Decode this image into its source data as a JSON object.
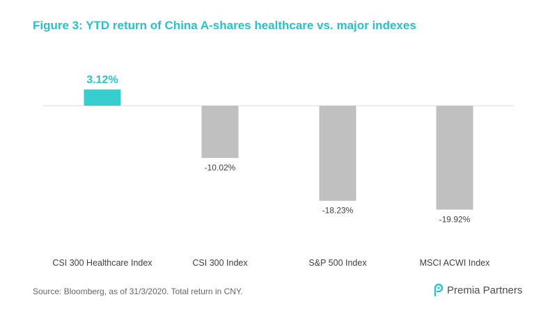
{
  "title": "Figure 3: YTD return of China A-shares healthcare vs. major indexes",
  "footer": {
    "source": "Source: Bloomberg,  as of 31/3/2020.  Total return in CNY.",
    "logo_text": "Premia Partners"
  },
  "colors": {
    "highlight": "#36cfcf",
    "bar": "#c0c0c0",
    "title": "#2cbfc5",
    "axis": "#d9d9d9",
    "label": "#404040"
  },
  "chart_data": {
    "type": "bar",
    "title": "Figure 3: YTD return of China A-shares healthcare vs. major indexes",
    "xlabel": "",
    "ylabel": "",
    "categories": [
      "CSI 300 Healthcare Index",
      "CSI 300 Index",
      "S&P 500 Index",
      "MSCI ACWI Index"
    ],
    "values": [
      3.12,
      -10.02,
      -18.23,
      -19.92
    ],
    "data_labels": [
      "3.12%",
      "-10.02%",
      "-18.23%",
      "-19.92%"
    ],
    "highlight_index": 0,
    "ylim": [
      -20,
      3.12
    ],
    "grid": false,
    "legend": "none"
  }
}
